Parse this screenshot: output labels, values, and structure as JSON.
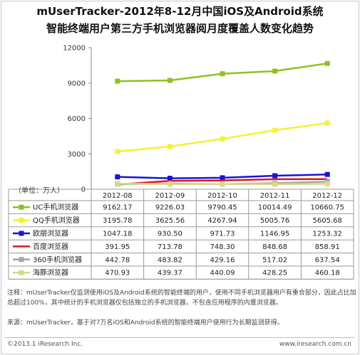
{
  "title_line1": "mUserTracker-2012年8-12月中国iOS及Android系统",
  "title_line2": "智能终端用户第三方手机浏览器阅月度覆盖人数变化趋势",
  "unit_label": "（单位：万人）",
  "note1": "注释：mUserTracker仅监测使用iOS及Android系统的智能终端的用户，使用不同手机浏览器用户有重合部分，因此占比加总超过100%，其中统计的手机浏览器仅包括独立的手机浏览器，不包含应用程序的内置浏览器。",
  "note2": "来源：mUserTracker，基于对7万名iOS和Android系统的智能终端用户使用行为长期监测获得。",
  "footer_left": "©2013.1 iResearch Inc.",
  "footer_right": "www.iresearch.com.cn",
  "chart_data": {
    "type": "line",
    "x": [
      "2012-08",
      "2012-09",
      "2012-10",
      "2012-11",
      "2012-12"
    ],
    "yticks": [
      0,
      3000,
      6000,
      9000,
      12000
    ],
    "ylim": [
      0,
      12000
    ],
    "grid": false,
    "legend": "table-below",
    "series": [
      {
        "name": "UC手机浏览器",
        "color": "#8dc21f",
        "marker": "square",
        "values": [
          9162.17,
          9226.03,
          9790.45,
          10014.49,
          10660.75
        ],
        "labels": [
          "9162.17",
          "9226.03",
          "9790.45",
          "10014.49",
          "10660.75"
        ]
      },
      {
        "name": "QQ手机浏览器",
        "color": "#f5f032",
        "marker": "square",
        "values": [
          3195.78,
          3625.56,
          4267.94,
          5005.76,
          5605.68
        ],
        "labels": [
          "3195.78",
          "3625.56",
          "4267.94",
          "5005.76",
          "5605.68"
        ]
      },
      {
        "name": "欧朋浏览器",
        "color": "#1515d8",
        "marker": "square",
        "values": [
          1047.18,
          930.5,
          971.73,
          1146.95,
          1253.32
        ],
        "labels": [
          "1047.18",
          "930.50",
          "971.73",
          "1146.95",
          "1253.32"
        ]
      },
      {
        "name": "百度浏览器",
        "color": "#e0141e",
        "marker": "none",
        "values": [
          391.95,
          713.78,
          748.3,
          848.68,
          858.91
        ],
        "labels": [
          "391.95",
          "713.78",
          "748.30",
          "848.68",
          "858.91"
        ]
      },
      {
        "name": "360手机浏览器",
        "color": "#a6a6a6",
        "marker": "square",
        "values": [
          442.78,
          483.82,
          429.16,
          517.02,
          637.54
        ],
        "labels": [
          "442.78",
          "483.82",
          "429.16",
          "517.02",
          "637.54"
        ]
      },
      {
        "name": "海豚浏览器",
        "color": "#d6d98a",
        "marker": "square",
        "values": [
          470.93,
          439.37,
          440.09,
          428.25,
          460.18
        ],
        "labels": [
          "470.93",
          "439.37",
          "440.09",
          "428.25",
          "460.18"
        ]
      }
    ]
  }
}
